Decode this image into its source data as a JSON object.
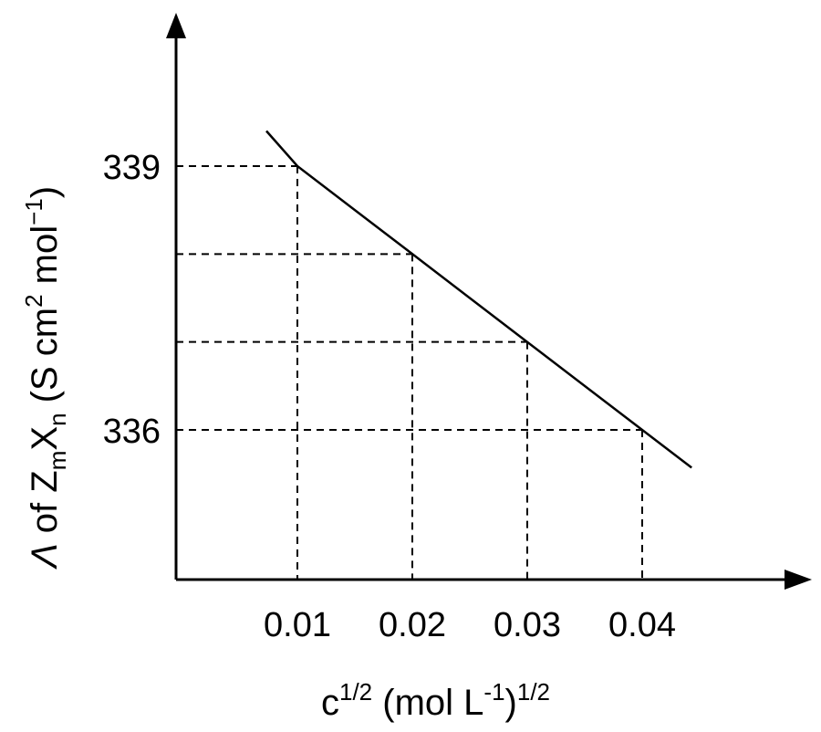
{
  "chart_data": {
    "type": "line",
    "x_ticks": [
      "0.01",
      "0.02",
      "0.03",
      "0.04"
    ],
    "y_ticks": [
      "339",
      "336"
    ],
    "x_tick_values": [
      0.01,
      0.02,
      0.03,
      0.04
    ],
    "y_tick_values": [
      339,
      336
    ],
    "xlabel": {
      "base": "c",
      "sup1": "1/2",
      "mid": " (mol L",
      "sup2": "-1",
      "close": ")",
      "sup3": "1/2"
    },
    "ylabel": {
      "symbol": "Λ",
      "of": " of Z",
      "sub1": "m",
      "x": "X",
      "sub2": "n",
      "units": " (S cm",
      "sup1": "2",
      "mol": " mol",
      "sup2": "−1",
      "close": ")"
    },
    "series": [
      {
        "x": [
          0.0073,
          0.01,
          0.02,
          0.03,
          0.04,
          0.0443
        ],
        "y": [
          339.4,
          339.0,
          338.0,
          337.0,
          336.0,
          335.57
        ]
      }
    ],
    "reference_points": [
      {
        "x": 0.01,
        "y": 339.0
      },
      {
        "x": 0.02,
        "y": 338.0
      },
      {
        "x": 0.03,
        "y": 337.0
      },
      {
        "x": 0.04,
        "y": 336.0
      }
    ],
    "grid": false,
    "dashed_drop_lines": true
  }
}
